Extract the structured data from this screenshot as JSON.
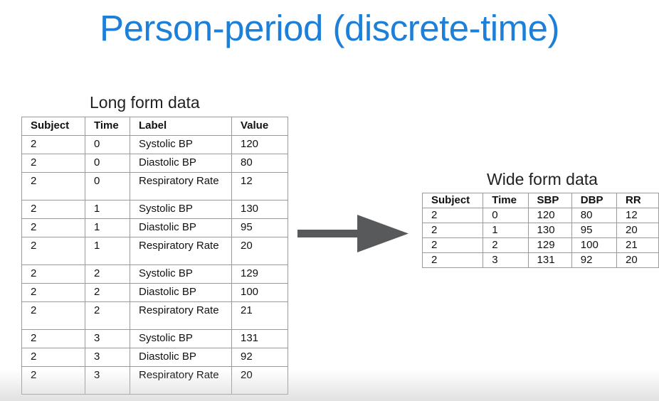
{
  "title": "Person-period (discrete-time)",
  "long_form": {
    "caption": "Long form data",
    "headers": [
      "Subject",
      "Time",
      "Label",
      "Value"
    ],
    "rows": [
      [
        "2",
        "0",
        "Systolic BP",
        "120"
      ],
      [
        "2",
        "0",
        "Diastolic BP",
        "80"
      ],
      [
        "2",
        "0",
        "Respiratory Rate",
        "12"
      ],
      [
        "2",
        "1",
        "Systolic BP",
        "130"
      ],
      [
        "2",
        "1",
        "Diastolic BP",
        "95"
      ],
      [
        "2",
        "1",
        "Respiratory Rate",
        "20"
      ],
      [
        "2",
        "2",
        "Systolic BP",
        "129"
      ],
      [
        "2",
        "2",
        "Diastolic BP",
        "100"
      ],
      [
        "2",
        "2",
        "Respiratory Rate",
        "21"
      ],
      [
        "2",
        "3",
        "Systolic BP",
        "131"
      ],
      [
        "2",
        "3",
        "Diastolic BP",
        "92"
      ],
      [
        "2",
        "3",
        "Respiratory Rate",
        "20"
      ]
    ]
  },
  "wide_form": {
    "caption": "Wide form data",
    "headers": [
      "Subject",
      "Time",
      "SBP",
      "DBP",
      "RR"
    ],
    "rows": [
      [
        "2",
        "0",
        "120",
        "80",
        "12"
      ],
      [
        "2",
        "1",
        "130",
        "95",
        "20"
      ],
      [
        "2",
        "2",
        "129",
        "100",
        "21"
      ],
      [
        "2",
        "3",
        "131",
        "92",
        "20"
      ]
    ]
  },
  "arrow_icon": "right-arrow-icon",
  "colors": {
    "title": "#1d7fd8",
    "arrow": "#58595b",
    "border": "#9a9a9a"
  }
}
